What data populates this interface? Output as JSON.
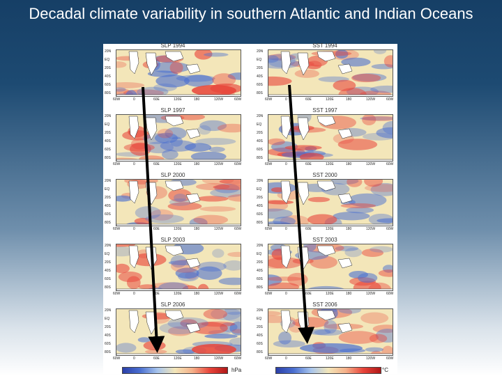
{
  "slide": {
    "title": "Decadal climate variability in southern Atlantic and Indian Oceans"
  },
  "panels": {
    "left": [
      {
        "label": "SLP 1994"
      },
      {
        "label": "SLP 1997"
      },
      {
        "label": "SLP 2000"
      },
      {
        "label": "SLP 2003"
      },
      {
        "label": "SLP 2006"
      }
    ],
    "right": [
      {
        "label": "SST 1994"
      },
      {
        "label": "SST 1997"
      },
      {
        "label": "SST 2000"
      },
      {
        "label": "SST 2003"
      },
      {
        "label": "SST 2006"
      }
    ]
  },
  "axes": {
    "lat_labels": [
      "20N",
      "EQ",
      "20S",
      "40S",
      "60S",
      "80S"
    ],
    "lon_labels": [
      "60W",
      "0",
      "60E",
      "120E",
      "180",
      "120W",
      "60W"
    ]
  },
  "colorbars": {
    "left_unit": "hPa",
    "right_unit": "°C"
  },
  "colors": {
    "warm": "#e8443a",
    "cool": "#4a6fd0",
    "neutral": "#f3e6b9",
    "land": "#ffffff"
  }
}
